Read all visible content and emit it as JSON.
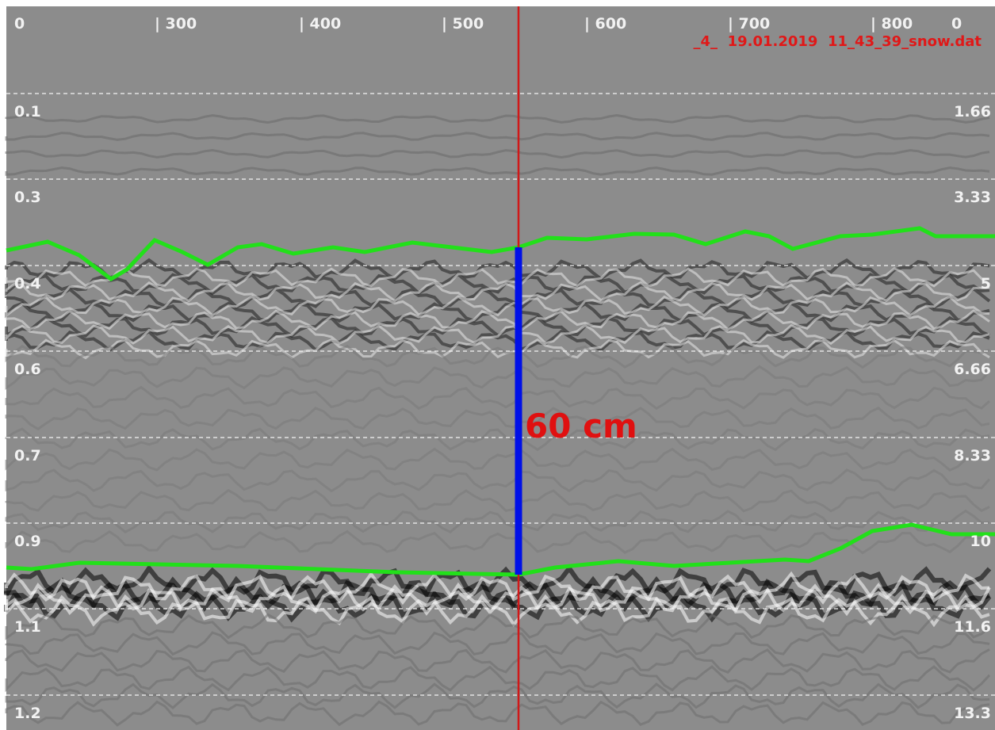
{
  "top_axis": {
    "labels": [
      "0",
      "| 300",
      "| 400",
      "| 500",
      "| 600",
      "| 700",
      "| 800",
      "0"
    ]
  },
  "file_name": "_4_  19.01.2019  11_43_39_snow.dat",
  "left_axis": {
    "labels": [
      "0.1",
      "0.3",
      "0.4",
      "0.6",
      "0.7",
      "0.9",
      "1.1",
      "1.2"
    ]
  },
  "right_axis": {
    "labels": [
      "1.66",
      "3.33",
      "5",
      "6.66",
      "8.33",
      "10",
      "11.6",
      "13.3"
    ]
  },
  "annotation": "60 cm"
}
